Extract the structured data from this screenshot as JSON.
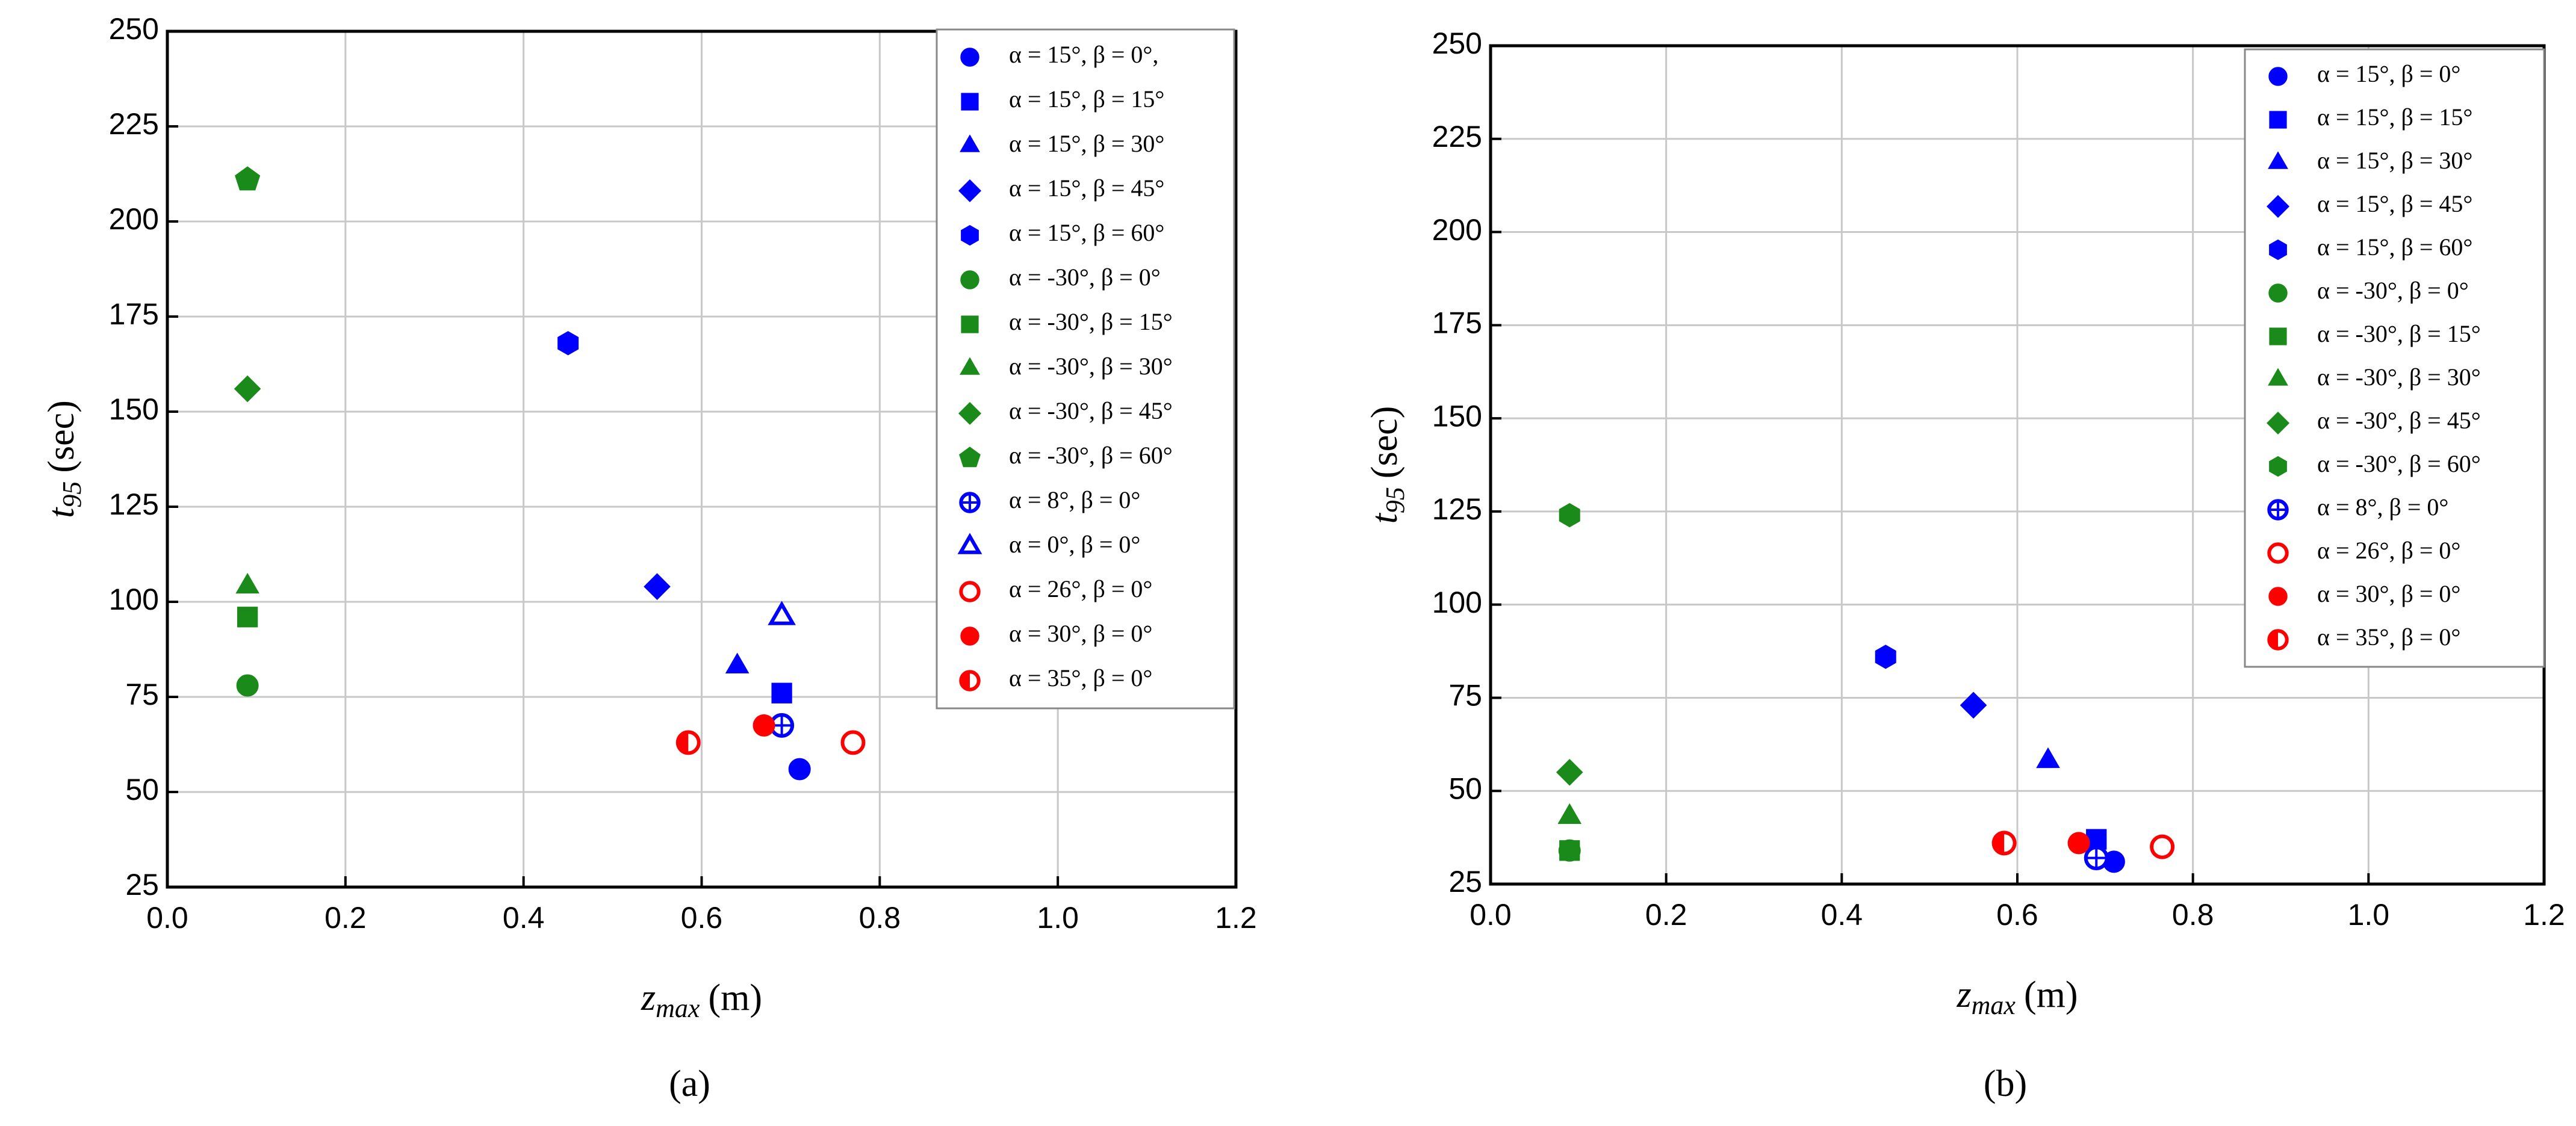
{
  "chart_data": [
    {
      "type": "scatter",
      "panel_label": "(a)",
      "xlabel": {
        "symbol": "z",
        "subscript": "max",
        "unit": "(m)"
      },
      "ylabel": {
        "symbol": "t",
        "subscript": "95",
        "unit": "(sec)"
      },
      "xlim": [
        0,
        1.2
      ],
      "xticks": [
        {
          "value": 0,
          "label": "0.0"
        },
        0.2,
        0.4,
        0.6,
        0.8,
        {
          "value": 1,
          "label": "1.0"
        },
        1.2
      ],
      "ylim": [
        25,
        250
      ],
      "yticks": [
        25,
        50,
        75,
        100,
        125,
        150,
        175,
        200,
        225,
        250
      ],
      "grid": true,
      "legend": "upper right",
      "series": [
        {
          "name": "α = 15°, β = 0°,",
          "color": "#0000ff",
          "marker": "circle",
          "fill": "filled",
          "x": [
            0.71
          ],
          "values": [
            56
          ]
        },
        {
          "name": "α = 15°, β = 15°",
          "color": "#0000ff",
          "marker": "square",
          "fill": "filled",
          "x": [
            0.69
          ],
          "values": [
            76
          ]
        },
        {
          "name": "α = 15°, β = 30°",
          "color": "#0000ff",
          "marker": "triangle",
          "fill": "filled",
          "x": [
            0.64
          ],
          "values": [
            83
          ]
        },
        {
          "name": "α = 15°, β = 45°",
          "color": "#0000ff",
          "marker": "diamond",
          "fill": "filled",
          "x": [
            0.55
          ],
          "values": [
            104
          ]
        },
        {
          "name": "α = 15°, β = 60°",
          "color": "#0000ff",
          "marker": "hexagon",
          "fill": "filled",
          "x": [
            0.45
          ],
          "values": [
            168
          ]
        },
        {
          "name": "α = -30°, β = 0°",
          "color": "#1a8a1a",
          "marker": "circle",
          "fill": "filled",
          "x": [
            0.09
          ],
          "values": [
            78
          ]
        },
        {
          "name": "α = -30°, β = 15°",
          "color": "#1a8a1a",
          "marker": "square",
          "fill": "filled",
          "x": [
            0.09
          ],
          "values": [
            96
          ]
        },
        {
          "name": "α = -30°, β = 30°",
          "color": "#1a8a1a",
          "marker": "triangle",
          "fill": "filled",
          "x": [
            0.09
          ],
          "values": [
            104
          ]
        },
        {
          "name": "α = -30°, β = 45°",
          "color": "#1a8a1a",
          "marker": "diamond",
          "fill": "filled",
          "x": [
            0.09
          ],
          "values": [
            156
          ]
        },
        {
          "name": "α = -30°, β = 60°",
          "color": "#1a8a1a",
          "marker": "pentagon",
          "fill": "filled",
          "x": [
            0.09
          ],
          "values": [
            211
          ]
        },
        {
          "name": "α = 8°, β = 0°",
          "color": "#0000ff",
          "marker": "circle",
          "fill": "crossed",
          "x": [
            0.69
          ],
          "values": [
            67.5
          ]
        },
        {
          "name": "α = 0°, β = 0°",
          "color": "#0000ff",
          "marker": "triangle",
          "fill": "open",
          "x": [
            0.69
          ],
          "values": [
            96
          ]
        },
        {
          "name": "α = 26°, β = 0°",
          "color": "#ff0000",
          "marker": "circle",
          "fill": "open",
          "x": [
            0.77
          ],
          "values": [
            63
          ]
        },
        {
          "name": "α = 30°, β = 0°",
          "color": "#ff0000",
          "marker": "circle",
          "fill": "filled",
          "x": [
            0.67
          ],
          "values": [
            67.5
          ]
        },
        {
          "name": "α = 35°, β = 0°",
          "color": "#ff0000",
          "marker": "circle",
          "fill": "half",
          "x": [
            0.585
          ],
          "values": [
            63
          ]
        }
      ]
    },
    {
      "type": "scatter",
      "panel_label": "(b)",
      "xlabel": {
        "symbol": "z",
        "subscript": "max",
        "unit": "(m)"
      },
      "ylabel": {
        "symbol": "t",
        "subscript": "95",
        "unit": "(sec)"
      },
      "xlim": [
        0,
        1.2
      ],
      "xticks": [
        {
          "value": 0,
          "label": "0.0"
        },
        0.2,
        0.4,
        0.6,
        0.8,
        {
          "value": 1,
          "label": "1.0"
        },
        1.2
      ],
      "ylim": [
        25,
        250
      ],
      "yticks": [
        25,
        50,
        75,
        100,
        125,
        150,
        175,
        200,
        225,
        250
      ],
      "grid": true,
      "legend": "upper right",
      "series": [
        {
          "name": "α = 15°, β = 0°",
          "color": "#0000ff",
          "marker": "circle",
          "fill": "filled",
          "x": [
            0.71
          ],
          "values": [
            31
          ]
        },
        {
          "name": "α = 15°, β = 15°",
          "color": "#0000ff",
          "marker": "square",
          "fill": "filled",
          "x": [
            0.69
          ],
          "values": [
            37
          ]
        },
        {
          "name": "α = 15°, β = 30°",
          "color": "#0000ff",
          "marker": "triangle",
          "fill": "filled",
          "x": [
            0.635
          ],
          "values": [
            58
          ]
        },
        {
          "name": "α = 15°, β = 45°",
          "color": "#0000ff",
          "marker": "diamond",
          "fill": "filled",
          "x": [
            0.55
          ],
          "values": [
            73
          ]
        },
        {
          "name": "α = 15°, β = 60°",
          "color": "#0000ff",
          "marker": "hexagon",
          "fill": "filled",
          "x": [
            0.45
          ],
          "values": [
            86
          ]
        },
        {
          "name": "α = -30°, β = 0°",
          "color": "#1a8a1a",
          "marker": "circle",
          "fill": "filled",
          "x": [
            0.09
          ],
          "values": [
            34
          ]
        },
        {
          "name": "α = -30°, β = 15°",
          "color": "#1a8a1a",
          "marker": "square",
          "fill": "filled",
          "x": [
            0.09
          ],
          "values": [
            34
          ]
        },
        {
          "name": "α = -30°, β = 30°",
          "color": "#1a8a1a",
          "marker": "triangle",
          "fill": "filled",
          "x": [
            0.09
          ],
          "values": [
            43
          ]
        },
        {
          "name": "α = -30°, β = 45°",
          "color": "#1a8a1a",
          "marker": "diamond",
          "fill": "filled",
          "x": [
            0.09
          ],
          "values": [
            55
          ]
        },
        {
          "name": "α = -30°, β = 60°",
          "color": "#1a8a1a",
          "marker": "hexagon",
          "fill": "filled",
          "x": [
            0.09
          ],
          "values": [
            124
          ]
        },
        {
          "name": "α = 8°, β = 0°",
          "color": "#0000ff",
          "marker": "circle",
          "fill": "crossed",
          "x": [
            0.69
          ],
          "values": [
            32
          ]
        },
        {
          "name": "α = 26°, β = 0°",
          "color": "#ff0000",
          "marker": "circle",
          "fill": "open",
          "x": [
            0.765
          ],
          "values": [
            35
          ]
        },
        {
          "name": "α = 30°, β = 0°",
          "color": "#ff0000",
          "marker": "circle",
          "fill": "filled",
          "x": [
            0.67
          ],
          "values": [
            36
          ]
        },
        {
          "name": "α = 35°, β = 0°",
          "color": "#ff0000",
          "marker": "circle",
          "fill": "half",
          "x": [
            0.585
          ],
          "values": [
            36
          ]
        }
      ]
    }
  ]
}
